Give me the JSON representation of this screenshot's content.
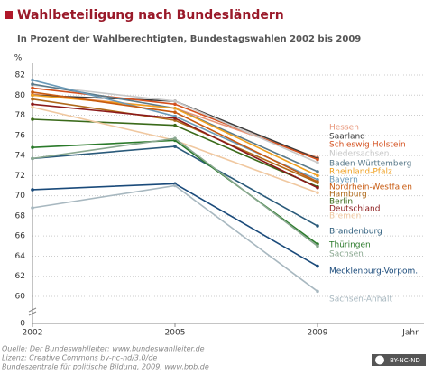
{
  "chart_data": {
    "type": "line",
    "title": "Wahlbeteiligung nach Bundesländern",
    "subtitle": "In Prozent der Wahlberechtigten, Bundestagswahlen 2002 bis 2009",
    "y_unit": "%",
    "x_label": "Jahr",
    "categories": [
      "2002",
      "2005",
      "2009"
    ],
    "ylim": [
      60,
      82
    ],
    "yticks": [
      60,
      62,
      64,
      66,
      68,
      70,
      72,
      74,
      76,
      78,
      80,
      82
    ],
    "y_break_tick": 0,
    "grid": true,
    "series": [
      {
        "name": "Hessen",
        "color": "#e8967a",
        "values": [
          80.1,
          78.7,
          73.8
        ]
      },
      {
        "name": "Saarland",
        "color": "#3a3a3a",
        "values": [
          80.0,
          79.4,
          73.7
        ]
      },
      {
        "name": "Schleswig-Holstein",
        "color": "#d4501e",
        "values": [
          80.7,
          79.1,
          73.6
        ]
      },
      {
        "name": "Niedersachsen",
        "color": "#c8c8c8",
        "values": [
          81.0,
          79.4,
          73.3
        ]
      },
      {
        "name": "Baden-Württemberg",
        "color": "#5a7a8a",
        "values": [
          81.1,
          78.7,
          72.4
        ]
      },
      {
        "name": "Rheinland-Pfalz",
        "color": "#f0a020",
        "values": [
          80.0,
          78.7,
          72.0
        ]
      },
      {
        "name": "Bayern",
        "color": "#6a9ab8",
        "values": [
          81.5,
          77.9,
          71.6
        ]
      },
      {
        "name": "Nordrhein-Westfalen",
        "color": "#c85a10",
        "values": [
          80.3,
          78.3,
          71.4
        ]
      },
      {
        "name": "Hamburg",
        "color": "#b06a1a",
        "values": [
          79.6,
          77.5,
          71.3
        ]
      },
      {
        "name": "Berlin",
        "color": "#3a6a1a",
        "values": [
          77.6,
          77.0,
          70.9
        ]
      },
      {
        "name": "Deutschland",
        "color": "#8b1a1a",
        "values": [
          79.1,
          77.7,
          70.8
        ]
      },
      {
        "name": "Bremen",
        "color": "#f0c8a0",
        "values": [
          78.8,
          75.5,
          70.3
        ]
      },
      {
        "name": "Brandenburg",
        "color": "#2a5a7a",
        "values": [
          73.7,
          74.9,
          67.0
        ]
      },
      {
        "name": "Thüringen",
        "color": "#2a7a2a",
        "values": [
          74.8,
          75.5,
          65.2
        ]
      },
      {
        "name": "Sachsen",
        "color": "#8aa890",
        "values": [
          73.7,
          75.7,
          65.0
        ]
      },
      {
        "name": "Mecklenburg-Vorpom.",
        "color": "#1a4a7a",
        "values": [
          70.6,
          71.2,
          63.0
        ]
      },
      {
        "name": "Sachsen-Anhalt",
        "color": "#a8b8c0",
        "values": [
          68.8,
          71.0,
          60.5
        ]
      }
    ]
  },
  "footer": {
    "lines": [
      "Quelle: Der Bundeswahlleiter: www.bundeswahlleiter.de",
      "Lizenz: Creative Commons by-nc-nd/3.0/de",
      "Bundeszentrale für politische Bildung, 2009, www.bpb.de"
    ],
    "badge": "BY-NC-ND"
  }
}
